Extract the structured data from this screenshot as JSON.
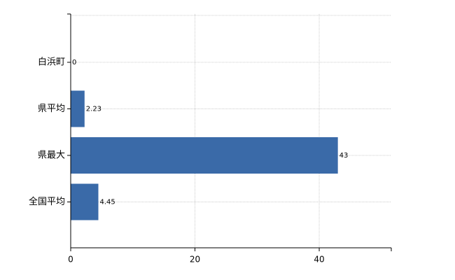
{
  "chart_data": {
    "type": "bar",
    "orientation": "horizontal",
    "categories": [
      "白浜町",
      "県平均",
      "県最大",
      "全国平均"
    ],
    "values": [
      0,
      2.23,
      43,
      4.45
    ],
    "color": "#3a6aa8",
    "xlim": [
      0,
      51.6
    ],
    "xticks": [
      0,
      20,
      40
    ],
    "grid": true
  }
}
